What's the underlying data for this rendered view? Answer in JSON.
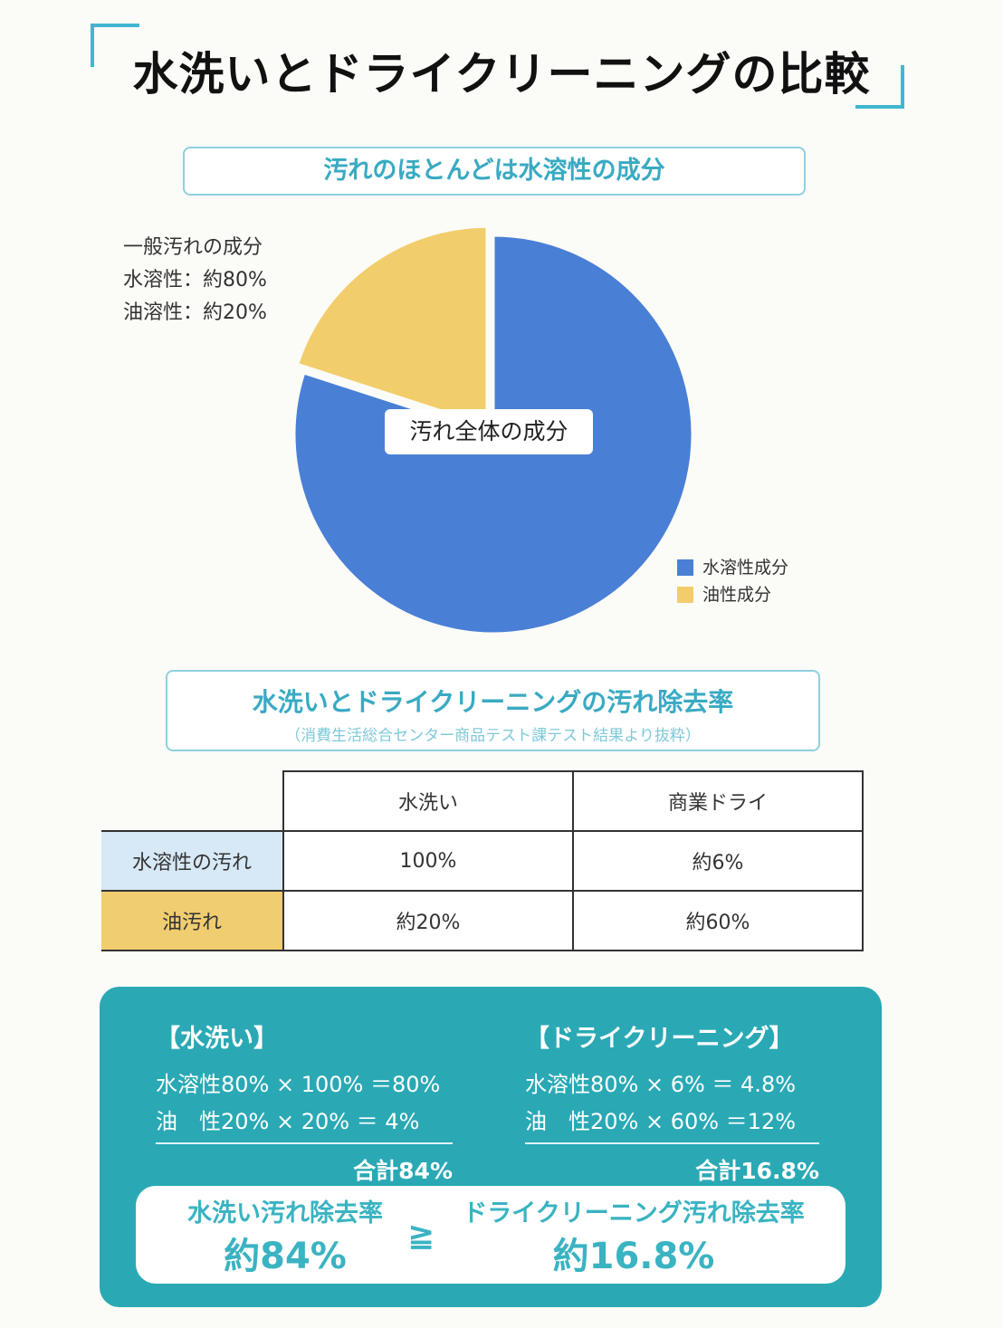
{
  "title": "水洗いとドライクリーニングの比較",
  "section1": {
    "heading": "汚れのほとんどは水溶性の成分"
  },
  "note": {
    "line1": "一般汚れの成分",
    "line2": "水溶性：約80%",
    "line3": "油溶性：約20%"
  },
  "chart_data": {
    "type": "pie",
    "title": "汚れ全体の成分",
    "slices": [
      {
        "label": "水溶性成分",
        "value": 80,
        "color": "#4a7fd6"
      },
      {
        "label": "油性成分",
        "value": 20,
        "color": "#f2cd6b"
      }
    ],
    "legend": [
      "水溶性成分",
      "油性成分"
    ],
    "legend_position": "bottom-right",
    "exploded": "油性成分"
  },
  "section2": {
    "heading": "水洗いとドライクリーニングの汚れ除去率",
    "source": "（消費生活総合センター商品テスト課テスト結果より抜粋）"
  },
  "table": {
    "columns": [
      "水洗い",
      "商業ドライ"
    ],
    "rows": [
      {
        "label": "水溶性の汚れ",
        "values": [
          "100%",
          "約6%"
        ]
      },
      {
        "label": "油汚れ",
        "values": [
          "約20%",
          "約60%"
        ]
      }
    ]
  },
  "calc": {
    "left": {
      "heading": "【水洗い】",
      "line1": "水溶性80% × 100% ＝80%",
      "line2": "油　性20% ×  20% ＝  4%",
      "total": "合計84%"
    },
    "right": {
      "heading": "【ドライクリーニング】",
      "line1": "水溶性80% ×   6% ＝  4.8%",
      "line2": "油　性20% × 60% ＝12%",
      "total": "合計16.8%"
    }
  },
  "result": {
    "left_label": "水洗い汚れ除去率",
    "left_value": "約84%",
    "symbol": "≧",
    "right_label": "ドライクリーニング汚れ除去率",
    "right_value": "約16.8%"
  }
}
